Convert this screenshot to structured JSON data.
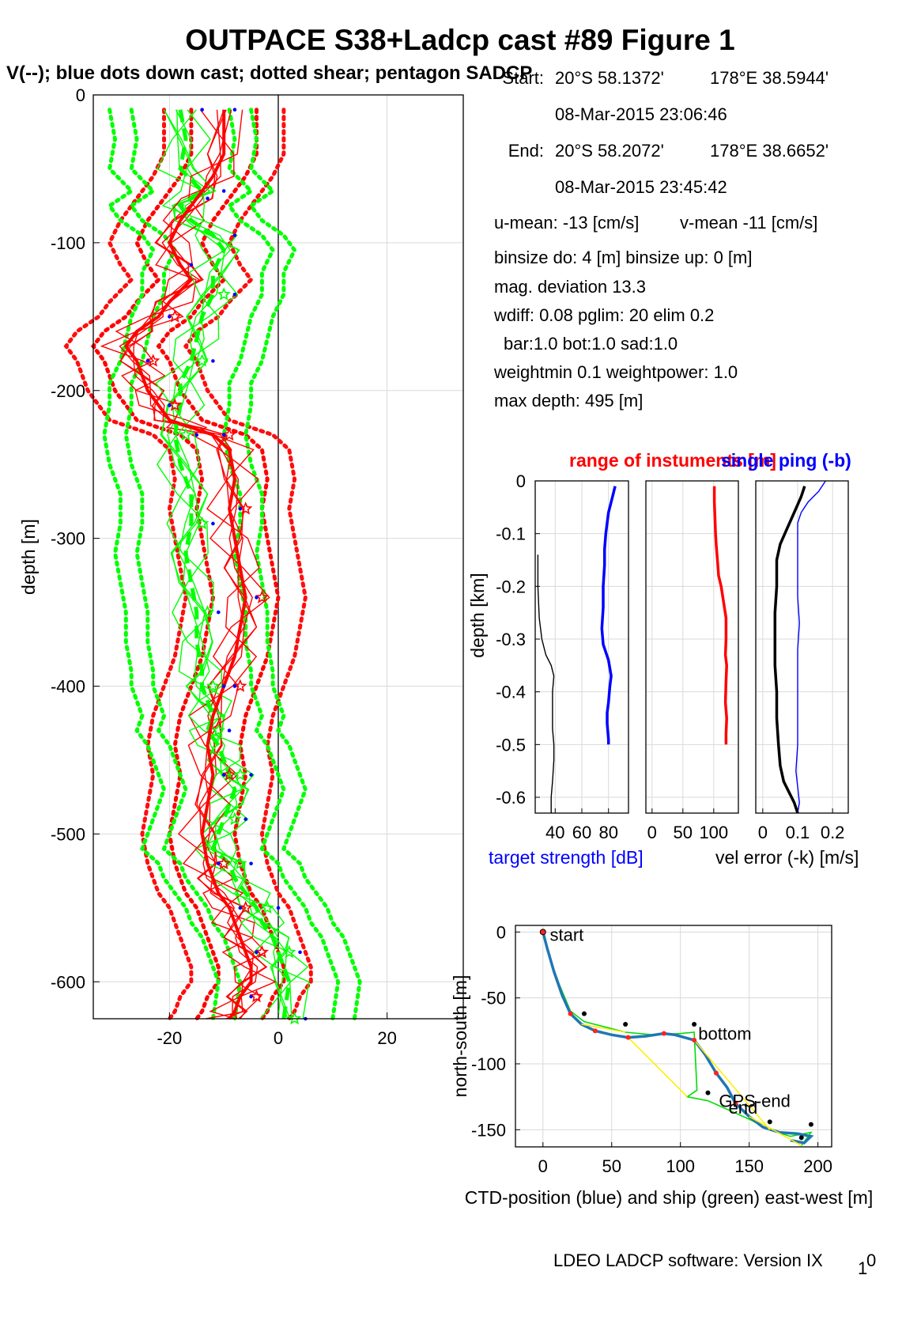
{
  "header": {
    "title": "OUTPACE S38+Ladcp cast #89  Figure 1",
    "subtitle": "V(--); blue dots down cast; dotted shear; pentagon SADCP"
  },
  "info": {
    "start_label": "Start:",
    "start_lat": "20°S 58.1372'",
    "start_lon": "178°E 38.5944'",
    "start_time": "08-Mar-2015 23:06:46",
    "end_label": "End:",
    "end_lat": "20°S 58.2072'",
    "end_lon": "178°E 38.6652'",
    "end_time": "08-Mar-2015 23:45:42",
    "umean": "u-mean: -13 [cm/s]",
    "vmean": "v-mean -11 [cm/s]",
    "binsize": "binsize do: 4 [m]  binsize up:  0 [m]",
    "magdev": "mag. deviation 13.3",
    "wdiff": "wdiff: 0.08  pglim: 20  elim 0.2",
    "bar": "bar:1.0 bot:1.0 sad:1.0",
    "weight": "weightmin 0.1  weightpower: 1.0",
    "maxdepth": "max depth: 495 [m]"
  },
  "footer": {
    "software": "LDEO LADCP software: Version IX",
    "subscript": "1",
    "suffix": "0"
  },
  "colors": {
    "u": "#ff0000",
    "v": "#00ff00",
    "dots": "#0000ff",
    "ts": "#0000ff",
    "range": "#ff0000",
    "err": "#000000",
    "single": "#0000ff",
    "ship": "#00dd00",
    "ctd": "#1f77b4",
    "link": "#ffee00"
  },
  "chart_data": [
    {
      "type": "line",
      "name": "velocity-profile",
      "xlabel": "",
      "ylabel": "depth [m]",
      "xlim": [
        -34,
        34
      ],
      "ylim": [
        -625,
        0
      ],
      "xticks": [
        -20,
        0,
        20
      ],
      "yticks": [
        0,
        -100,
        -200,
        -300,
        -400,
        -500,
        -600
      ],
      "grid": true,
      "series": [
        {
          "name": "u",
          "color": "red",
          "style": "solid",
          "x": [
            -10,
            -10,
            -12,
            -15,
            -18,
            -20,
            -18,
            -16,
            -20,
            -22,
            -26,
            -28,
            -26,
            -25,
            -24,
            -22,
            -20,
            -16,
            -12,
            -9,
            -8,
            -9,
            -8,
            -7,
            -6,
            -7,
            -8,
            -10,
            -12,
            -13,
            -12,
            -13,
            -14,
            -13,
            -12,
            -11,
            -9,
            -8,
            -7,
            -6,
            -5,
            -5,
            -7,
            -8,
            -9
          ],
          "y": [
            -10,
            -40,
            -55,
            -70,
            -85,
            -100,
            -115,
            -125,
            -140,
            -150,
            -160,
            -170,
            -180,
            -190,
            -200,
            -210,
            -220,
            -225,
            -230,
            -240,
            -260,
            -280,
            -300,
            -320,
            -340,
            -360,
            -380,
            -400,
            -420,
            -440,
            -460,
            -480,
            -500,
            -520,
            -530,
            -540,
            -550,
            -560,
            -570,
            -580,
            -590,
            -600,
            -610,
            -620,
            -625
          ]
        },
        {
          "name": "v",
          "color": "green",
          "style": "solid",
          "x": [
            -18,
            -17,
            -18,
            -14,
            -18,
            -16,
            -12,
            -10,
            -12,
            -12,
            -14,
            -15,
            -16,
            -18,
            -18,
            -19,
            -18,
            -16,
            -16,
            -17,
            -16,
            -15,
            -15,
            -14,
            -14,
            -13,
            -12,
            -13,
            -11,
            -10,
            -9,
            -8,
            -9,
            -10,
            -11,
            -12,
            -9,
            -8,
            -6,
            -4,
            -3,
            -1,
            0,
            1,
            2,
            1
          ],
          "y": [
            -10,
            -30,
            -50,
            -65,
            -75,
            -85,
            -95,
            -105,
            -120,
            -135,
            -150,
            -165,
            -180,
            -195,
            -210,
            -230,
            -250,
            -270,
            -290,
            -310,
            -330,
            -350,
            -370,
            -390,
            -400,
            -410,
            -420,
            -430,
            -440,
            -450,
            -460,
            -470,
            -480,
            -490,
            -500,
            -510,
            -520,
            -530,
            -540,
            -550,
            -560,
            -570,
            -580,
            -590,
            -600,
            -625
          ]
        }
      ]
    },
    {
      "type": "line",
      "name": "target-strength",
      "xlabel": "target strength [dB]",
      "ylabel": "depth [km]",
      "xlim": [
        25,
        95
      ],
      "ylim": [
        -0.63,
        0
      ],
      "xticks": [
        40,
        60,
        80
      ],
      "yticks": [
        0,
        -0.1,
        -0.2,
        -0.3,
        -0.4,
        -0.5,
        -0.6
      ],
      "series": [
        {
          "name": "ts-up",
          "color": "blue",
          "x": [
            85,
            83,
            80,
            78,
            77,
            77,
            76,
            76,
            75,
            76,
            80,
            82,
            81,
            80,
            79,
            79,
            80,
            80
          ],
          "y": [
            -0.01,
            -0.03,
            -0.06,
            -0.1,
            -0.13,
            -0.16,
            -0.2,
            -0.24,
            -0.28,
            -0.31,
            -0.34,
            -0.37,
            -0.39,
            -0.42,
            -0.44,
            -0.46,
            -0.49,
            -0.5
          ]
        },
        {
          "name": "ts-down",
          "color": "black",
          "x": [
            27,
            27,
            28,
            30,
            33,
            37,
            39,
            38,
            38,
            38,
            39,
            39,
            38,
            37,
            37
          ],
          "y": [
            -0.14,
            -0.2,
            -0.26,
            -0.3,
            -0.33,
            -0.35,
            -0.37,
            -0.4,
            -0.43,
            -0.47,
            -0.5,
            -0.53,
            -0.57,
            -0.6,
            -0.63
          ]
        }
      ]
    },
    {
      "type": "line",
      "name": "range-of-instruments",
      "xlabel": "",
      "title": "range of instuments [m]",
      "xlim": [
        -10,
        140
      ],
      "ylim": [
        -0.63,
        0
      ],
      "xticks": [
        0,
        50,
        100
      ],
      "series": [
        {
          "name": "range",
          "color": "red",
          "x": [
            101,
            101,
            102,
            103,
            104,
            106,
            108,
            112,
            116,
            120,
            120,
            119,
            121,
            120,
            119,
            121,
            120,
            120
          ],
          "y": [
            -0.01,
            -0.04,
            -0.07,
            -0.1,
            -0.12,
            -0.15,
            -0.18,
            -0.2,
            -0.23,
            -0.26,
            -0.3,
            -0.33,
            -0.35,
            -0.38,
            -0.42,
            -0.45,
            -0.48,
            -0.5
          ]
        }
      ]
    },
    {
      "type": "line",
      "name": "velocity-error",
      "xlabel": "vel error (-k) [m/s]",
      "title": "single ping (-b)",
      "xlim": [
        -0.02,
        0.245
      ],
      "ylim": [
        -0.63,
        0
      ],
      "xticks": [
        0,
        0.1,
        0.2
      ],
      "series": [
        {
          "name": "vel-error",
          "color": "black",
          "x": [
            0.12,
            0.11,
            0.09,
            0.07,
            0.05,
            0.04,
            0.04,
            0.035,
            0.035,
            0.035,
            0.04,
            0.04,
            0.045,
            0.05,
            0.06,
            0.075,
            0.09,
            0.1
          ],
          "y": [
            -0.01,
            -0.03,
            -0.06,
            -0.09,
            -0.12,
            -0.15,
            -0.2,
            -0.25,
            -0.3,
            -0.35,
            -0.4,
            -0.45,
            -0.5,
            -0.54,
            -0.57,
            -0.59,
            -0.61,
            -0.63
          ]
        },
        {
          "name": "single-ping",
          "color": "blue",
          "x": [
            0.18,
            0.16,
            0.13,
            0.11,
            0.1,
            0.1,
            0.1,
            0.1,
            0.105,
            0.1,
            0.1,
            0.1,
            0.1,
            0.1,
            0.095,
            0.1,
            0.105,
            0.1
          ],
          "y": [
            -0.0,
            -0.02,
            -0.04,
            -0.06,
            -0.08,
            -0.12,
            -0.17,
            -0.22,
            -0.27,
            -0.32,
            -0.37,
            -0.42,
            -0.46,
            -0.5,
            -0.55,
            -0.58,
            -0.61,
            -0.63
          ]
        }
      ]
    },
    {
      "type": "line",
      "name": "position-track",
      "xlabel": "CTD-position (blue) and ship (green) east-west [m]",
      "ylabel": "north-south [m]",
      "xlim": [
        -20,
        210
      ],
      "ylim": [
        -163,
        5
      ],
      "xticks": [
        0,
        50,
        100,
        150,
        200
      ],
      "yticks": [
        0,
        -50,
        -100,
        -150
      ],
      "annotations": [
        "start",
        "bottom",
        "GPS-end",
        "end"
      ],
      "series": [
        {
          "name": "ctd",
          "color": "blue",
          "x": [
            0,
            3,
            8,
            14,
            20,
            28,
            38,
            50,
            62,
            75,
            88,
            96,
            110,
            118,
            126,
            134,
            140,
            150,
            160,
            172,
            185,
            195,
            190,
            180
          ],
          "y": [
            0,
            -12,
            -30,
            -48,
            -62,
            -70,
            -75,
            -78,
            -80,
            -79,
            -77,
            -78,
            -82,
            -93,
            -107,
            -118,
            -130,
            -140,
            -148,
            -152,
            -153,
            -155,
            -160,
            -158
          ]
        },
        {
          "name": "ship",
          "color": "green",
          "x": [
            0,
            5,
            12,
            20,
            30,
            45,
            60,
            80,
            100,
            110,
            112,
            105,
            120,
            135,
            150,
            165,
            180,
            195,
            188
          ],
          "y": [
            0,
            -20,
            -40,
            -60,
            -68,
            -72,
            -76,
            -78,
            -77,
            -76,
            -120,
            -125,
            -128,
            -135,
            -142,
            -150,
            -155,
            -152,
            -162
          ]
        }
      ]
    }
  ]
}
